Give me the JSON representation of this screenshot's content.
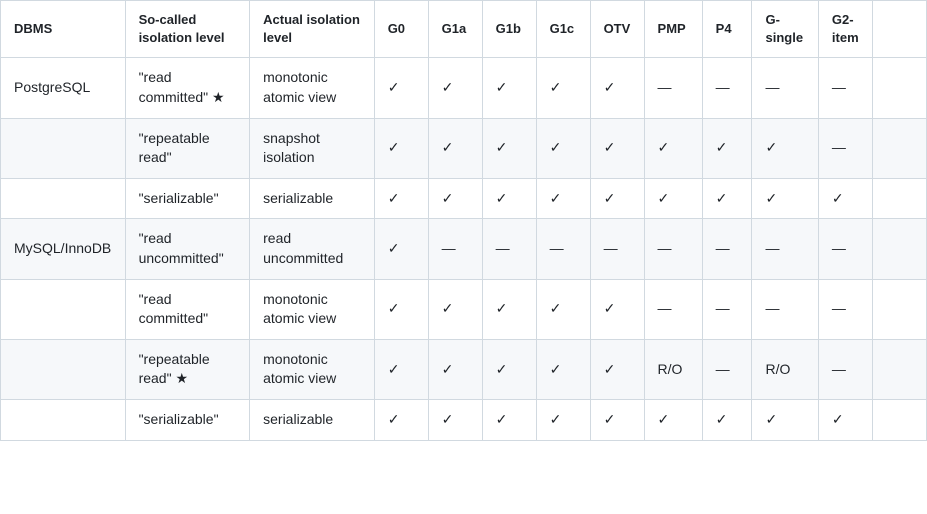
{
  "table": {
    "columns": [
      {
        "key": "DBMS",
        "label": "DBMS",
        "cls": "c-dbms"
      },
      {
        "key": "so",
        "label": "So-called isolation level",
        "cls": "c-so"
      },
      {
        "key": "act",
        "label": "Actual isolation level",
        "cls": "c-act"
      },
      {
        "key": "G0",
        "label": "G0",
        "cls": "c-g0"
      },
      {
        "key": "G1a",
        "label": "G1a",
        "cls": "c-g1a"
      },
      {
        "key": "G1b",
        "label": "G1b",
        "cls": "c-g1b"
      },
      {
        "key": "G1c",
        "label": "G1c",
        "cls": "c-g1c"
      },
      {
        "key": "OTV",
        "label": "OTV",
        "cls": "c-otv"
      },
      {
        "key": "PMP",
        "label": "PMP",
        "cls": "c-pmp"
      },
      {
        "key": "P4",
        "label": "P4",
        "cls": "c-p4"
      },
      {
        "key": "Gs",
        "label": "G-single",
        "cls": "c-gs"
      },
      {
        "key": "G2i",
        "label": "G2-item",
        "cls": "c-g2i"
      },
      {
        "key": "ov",
        "label": "",
        "cls": "c-ov"
      }
    ],
    "rows": [
      {
        "DBMS": "PostgreSQL",
        "so": "\"read committed\" ★",
        "act": "monotonic atomic view",
        "G0": "✓",
        "G1a": "✓",
        "G1b": "✓",
        "G1c": "✓",
        "OTV": "✓",
        "PMP": "—",
        "P4": "—",
        "Gs": "—",
        "G2i": "—",
        "ov": ""
      },
      {
        "DBMS": "",
        "so": "\"repeatable read\"",
        "act": "snapshot isolation",
        "G0": "✓",
        "G1a": "✓",
        "G1b": "✓",
        "G1c": "✓",
        "OTV": "✓",
        "PMP": "✓",
        "P4": "✓",
        "Gs": "✓",
        "G2i": "—",
        "ov": ""
      },
      {
        "DBMS": "",
        "so": "\"serializable\"",
        "act": "serializable",
        "G0": "✓",
        "G1a": "✓",
        "G1b": "✓",
        "G1c": "✓",
        "OTV": "✓",
        "PMP": "✓",
        "P4": "✓",
        "Gs": "✓",
        "G2i": "✓",
        "ov": ""
      },
      {
        "DBMS": "MySQL/InnoDB",
        "so": "\"read uncommitted\"",
        "act": "read uncommitted",
        "G0": "✓",
        "G1a": "—",
        "G1b": "—",
        "G1c": "—",
        "OTV": "—",
        "PMP": "—",
        "P4": "—",
        "Gs": "—",
        "G2i": "—",
        "ov": ""
      },
      {
        "DBMS": "",
        "so": "\"read committed\"",
        "act": "monotonic atomic view",
        "G0": "✓",
        "G1a": "✓",
        "G1b": "✓",
        "G1c": "✓",
        "OTV": "✓",
        "PMP": "—",
        "P4": "—",
        "Gs": "—",
        "G2i": "—",
        "ov": ""
      },
      {
        "DBMS": "",
        "so": "\"repeatable read\" ★",
        "act": "monotonic atomic view",
        "G0": "✓",
        "G1a": "✓",
        "G1b": "✓",
        "G1c": "✓",
        "OTV": "✓",
        "PMP": "R/O",
        "P4": "—",
        "Gs": "R/O",
        "G2i": "—",
        "ov": ""
      },
      {
        "DBMS": "",
        "so": "\"serializable\"",
        "act": "serializable",
        "G0": "✓",
        "G1a": "✓",
        "G1b": "✓",
        "G1c": "✓",
        "OTV": "✓",
        "PMP": "✓",
        "P4": "✓",
        "Gs": "✓",
        "G2i": "✓",
        "ov": ""
      }
    ]
  },
  "symbols": {
    "check": "✓",
    "dash": "—",
    "star": "★"
  },
  "colors": {
    "text": "#1f2328",
    "border": "#d1d9e0",
    "alt_row_bg": "#f6f8fa",
    "bg": "#ffffff"
  }
}
